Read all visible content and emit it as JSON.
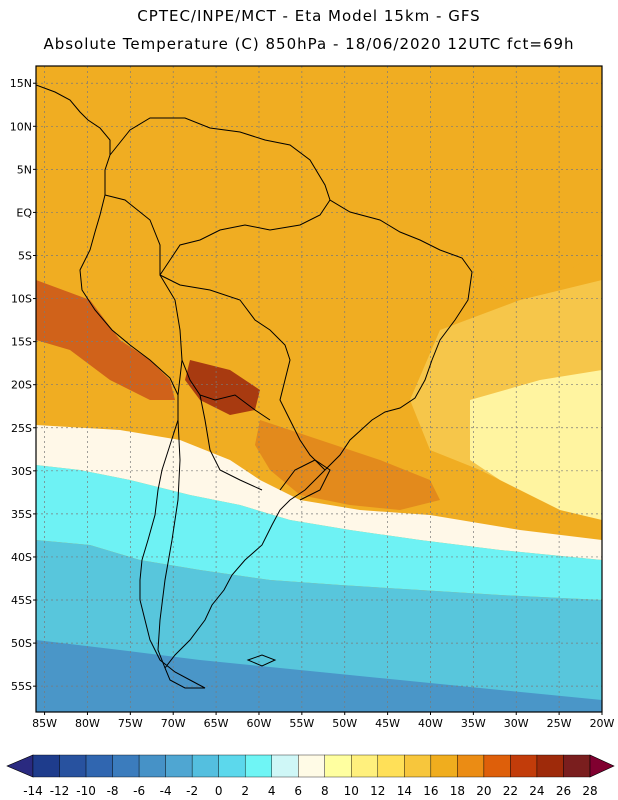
{
  "header": {
    "line1": "CPTEC/INPE/MCT -  Eta Model 15km - GFS",
    "line2": "Absolute Temperature (C) 850hPa - 18/06/2020 12UTC fct=69h"
  },
  "map": {
    "lat_labels": [
      "15N",
      "10N",
      "5N",
      "EQ",
      "5S",
      "10S",
      "15S",
      "20S",
      "25S",
      "30S",
      "35S",
      "40S",
      "45S",
      "50S",
      "55S"
    ],
    "lon_labels": [
      "85W",
      "80W",
      "75W",
      "70W",
      "65W",
      "60W",
      "55W",
      "50W",
      "45W",
      "40W",
      "35W",
      "30W",
      "25W",
      "20W"
    ],
    "lat_range": [
      17,
      -58
    ],
    "lon_range": [
      -86,
      -20
    ]
  },
  "colorbar": {
    "labels": [
      "-14",
      "-12",
      "-10",
      "-8",
      "-6",
      "-4",
      "-2",
      "0",
      "2",
      "4",
      "6",
      "8",
      "10",
      "12",
      "14",
      "16",
      "18",
      "20",
      "22",
      "24",
      "26",
      "28"
    ],
    "colors": [
      "#1e3c8c",
      "#28529f",
      "#3066b0",
      "#3b7cbd",
      "#4692c7",
      "#4fa6d2",
      "#54bfdf",
      "#5cd8ec",
      "#6ff5f5",
      "#cff7f7",
      "#fffbe6",
      "#ffffa0",
      "#fff07d",
      "#ffe058",
      "#f7c63c",
      "#f0ad1e",
      "#eb8c14",
      "#de5f0a",
      "#c23c0a",
      "#9e2a0a",
      "#7a1e1e"
    ],
    "low_arrow_color": "#2a2a80",
    "high_arrow_color": "#800030"
  },
  "palette": {
    "deep_blue": "#4a96c8",
    "sky_blue": "#58c6dc",
    "cyan": "#6ef2f4",
    "pale": "#fff8e8",
    "light_yellow": "#fff4a0",
    "yellow": "#fde27a",
    "gold": "#f6c64a",
    "orange": "#f0ad22",
    "dark_orange": "#e38a1c",
    "red_orange": "#d0621a",
    "dark_red": "#a83a10"
  }
}
